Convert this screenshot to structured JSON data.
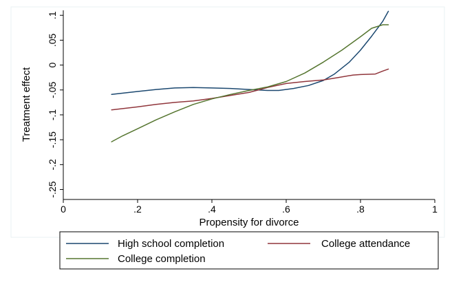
{
  "chart_data": {
    "type": "line",
    "xlabel": "Propensity for divorce",
    "ylabel": "Treatment effect",
    "xlim": [
      0,
      1
    ],
    "ylim": [
      -0.27,
      0.11
    ],
    "x_ticks": [
      {
        "value": 0,
        "label": "0"
      },
      {
        "value": 0.2,
        "label": ".2"
      },
      {
        "value": 0.4,
        "label": ".4"
      },
      {
        "value": 0.6,
        "label": ".6"
      },
      {
        "value": 0.8,
        "label": ".8"
      },
      {
        "value": 1,
        "label": "1"
      }
    ],
    "y_ticks": [
      {
        "value": 0.1,
        "label": ".1"
      },
      {
        "value": 0.05,
        "label": ".05"
      },
      {
        "value": 0,
        "label": "0"
      },
      {
        "value": -0.05,
        "label": "-.05"
      },
      {
        "value": -0.1,
        "label": "-.1"
      },
      {
        "value": -0.15,
        "label": "-.15"
      },
      {
        "value": -0.2,
        "label": "-.2"
      },
      {
        "value": -0.25,
        "label": "-.25"
      }
    ],
    "grid": false,
    "legend_position": "bottom",
    "series": [
      {
        "name": "High school completion",
        "color": "#1a476f",
        "x": [
          0.13,
          0.2,
          0.25,
          0.3,
          0.35,
          0.4,
          0.45,
          0.5,
          0.55,
          0.58,
          0.62,
          0.66,
          0.7,
          0.73,
          0.77,
          0.8,
          0.83,
          0.86,
          0.875
        ],
        "y": [
          -0.059,
          -0.053,
          -0.049,
          -0.046,
          -0.045,
          -0.046,
          -0.047,
          -0.049,
          -0.051,
          -0.051,
          -0.047,
          -0.041,
          -0.031,
          -0.018,
          0.006,
          0.03,
          0.058,
          0.088,
          0.108
        ]
      },
      {
        "name": "College attendance",
        "color": "#90353b",
        "x": [
          0.13,
          0.2,
          0.25,
          0.3,
          0.35,
          0.4,
          0.45,
          0.5,
          0.55,
          0.6,
          0.65,
          0.7,
          0.74,
          0.78,
          0.8,
          0.84,
          0.86,
          0.875
        ],
        "y": [
          -0.09,
          -0.084,
          -0.079,
          -0.075,
          -0.072,
          -0.067,
          -0.061,
          -0.055,
          -0.045,
          -0.037,
          -0.033,
          -0.03,
          -0.025,
          -0.02,
          -0.019,
          -0.018,
          -0.012,
          -0.008
        ]
      },
      {
        "name": "College completion",
        "color": "#55752f",
        "x": [
          0.13,
          0.16,
          0.2,
          0.25,
          0.3,
          0.35,
          0.4,
          0.45,
          0.5,
          0.55,
          0.6,
          0.65,
          0.7,
          0.75,
          0.8,
          0.83,
          0.86,
          0.875
        ],
        "y": [
          -0.154,
          -0.142,
          -0.128,
          -0.11,
          -0.094,
          -0.079,
          -0.068,
          -0.059,
          -0.051,
          -0.044,
          -0.033,
          -0.016,
          0.006,
          0.03,
          0.057,
          0.074,
          0.081,
          0.081
        ]
      }
    ]
  }
}
